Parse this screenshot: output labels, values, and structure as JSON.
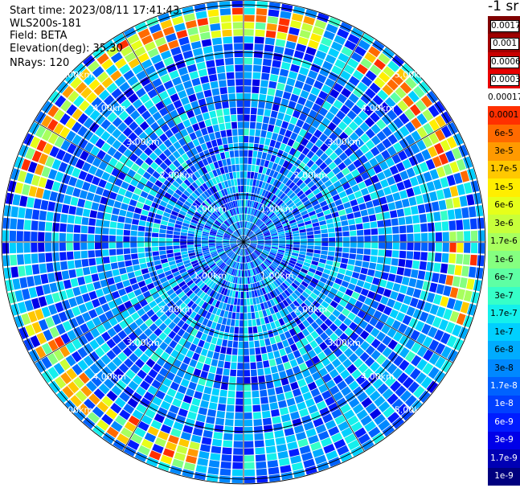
{
  "header": {
    "start_time": "Start time: 2023/08/11 17:41:43",
    "instrument": "WLS200s-181",
    "field": "Field: BETA",
    "elevation": "Elevation(deg): 35.30",
    "nrays": "NRays: 120"
  },
  "colorbar": {
    "unit": "-1 sr",
    "labels": [
      "0.0017",
      "0.001",
      "0.0006",
      "0.0003",
      "0.00017",
      "0.0001",
      "6e-5",
      "3e-5",
      "1.7e-5",
      "1e-5",
      "6e-6",
      "3e-6",
      "1.7e-6",
      "1e-6",
      "6e-7",
      "3e-7",
      "1.7e-7",
      "1e-7",
      "6e-8",
      "3e-8",
      "1.7e-8",
      "1e-8",
      "6e-9",
      "3e-9",
      "1.7e-9",
      "1e-9"
    ],
    "colors": [
      "#7f0000",
      "#a00000",
      "#c80000",
      "#e80000",
      "#ffffff",
      "#ff3000",
      "#ff6a00",
      "#ff9a00",
      "#ffc800",
      "#ffee00",
      "#e6ff1a",
      "#c8ff3a",
      "#a8ff5e",
      "#85ff80",
      "#5effa4",
      "#36ffc8",
      "#14f0ec",
      "#00d0ff",
      "#00acff",
      "#0088ff",
      "#0062ff",
      "#0040ff",
      "#001cff",
      "#0000e8",
      "#0000b4",
      "#00007f"
    ]
  },
  "chart_data": {
    "type": "heatmap",
    "projection": "polar PPI",
    "field": "BETA",
    "elevation_deg": 35.3,
    "n_rays": 120,
    "range_unit": "km",
    "range_rings": [
      "1.00km",
      "2.00km",
      "3.00km",
      "4.00km",
      "5.00km"
    ],
    "max_range_km": 5.1,
    "scale": "log",
    "value_range": [
      1e-09,
      0.0017
    ],
    "dominant_value": 3e-08,
    "enhanced_band": {
      "range_km": [
        4.3,
        4.9
      ],
      "peak_value": 0.0001
    }
  }
}
